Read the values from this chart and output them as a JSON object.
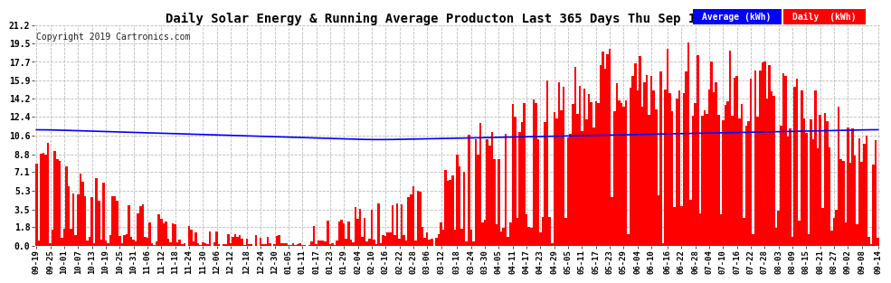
{
  "title": "Daily Solar Energy & Running Average Producton Last 365 Days Thu Sep 19 18:50",
  "copyright": "Copyright 2019 Cartronics.com",
  "legend_avg": "Average (kWh)",
  "legend_daily": "Daily  (kWh)",
  "yticks": [
    0.0,
    1.8,
    3.5,
    5.3,
    7.1,
    8.8,
    10.6,
    12.4,
    14.2,
    15.9,
    17.7,
    19.5,
    21.2
  ],
  "ylim": [
    0.0,
    21.2
  ],
  "bar_color": "#ff0000",
  "avg_line_color": "#0000ff",
  "avg_legend_bg": "#0000ff",
  "daily_legend_bg": "#ff0000",
  "title_fontsize": 10,
  "copyright_fontsize": 7,
  "background_color": "#ffffff",
  "grid_color": "#bbbbbb",
  "num_days": 365,
  "x_labels": [
    "09-19",
    "09-25",
    "10-01",
    "10-07",
    "10-13",
    "10-19",
    "10-25",
    "10-31",
    "11-06",
    "11-12",
    "11-18",
    "11-24",
    "11-30",
    "12-06",
    "12-12",
    "12-18",
    "12-24",
    "12-30",
    "01-05",
    "01-11",
    "01-17",
    "01-23",
    "01-29",
    "02-04",
    "02-10",
    "02-16",
    "02-22",
    "02-28",
    "03-06",
    "03-12",
    "03-18",
    "03-24",
    "03-30",
    "04-05",
    "04-11",
    "04-17",
    "04-23",
    "04-29",
    "05-05",
    "05-11",
    "05-17",
    "05-23",
    "05-29",
    "06-04",
    "06-10",
    "06-16",
    "06-22",
    "06-28",
    "07-04",
    "07-10",
    "07-16",
    "07-22",
    "07-28",
    "08-03",
    "08-09",
    "08-15",
    "08-21",
    "08-27",
    "09-02",
    "09-08",
    "09-14"
  ]
}
